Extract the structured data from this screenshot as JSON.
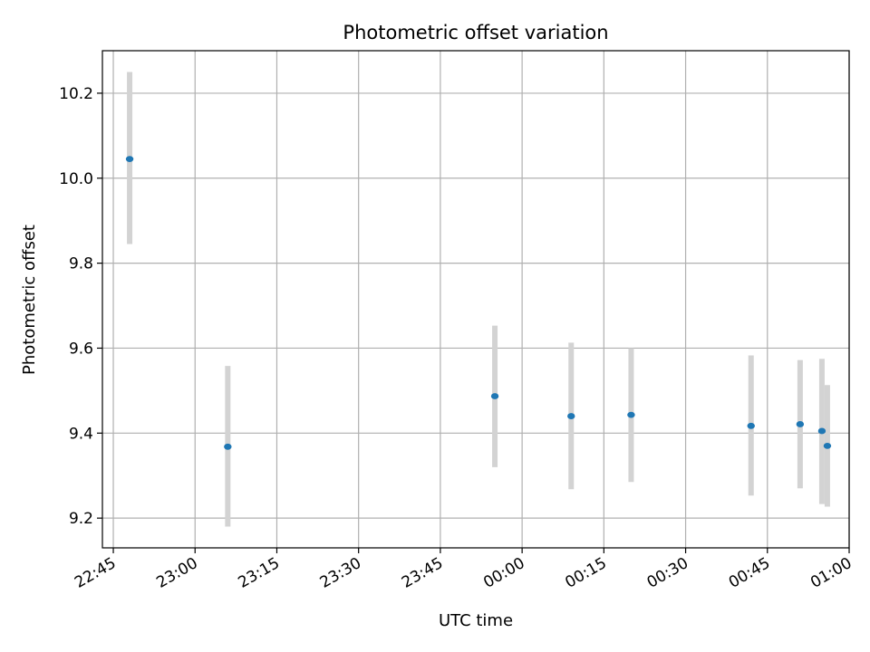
{
  "chart_data": {
    "type": "scatter",
    "title": "Photometric offset variation",
    "xlabel": "UTC time",
    "ylabel": "Photometric offset",
    "x_axis": "time (HH:MM, UTC)",
    "xlim": [
      "22:43",
      "01:00"
    ],
    "ylim": [
      9.13,
      10.3
    ],
    "x_ticks": [
      "22:45",
      "23:00",
      "23:15",
      "23:30",
      "23:45",
      "00:00",
      "00:15",
      "00:30",
      "00:45",
      "01:00"
    ],
    "y_ticks": [
      9.2,
      9.4,
      9.6,
      9.8,
      10.0,
      10.2
    ],
    "grid": true,
    "point_color": "#1f77b4",
    "errorbar_color": "#d3d3d3",
    "points": [
      {
        "time": "22:48",
        "y": 10.045,
        "ylow": 9.845,
        "yhigh": 10.25
      },
      {
        "time": "23:06",
        "y": 9.368,
        "ylow": 9.18,
        "yhigh": 9.558
      },
      {
        "time": "23:55",
        "y": 9.487,
        "ylow": 9.32,
        "yhigh": 9.653
      },
      {
        "time": "00:09",
        "y": 9.44,
        "ylow": 9.268,
        "yhigh": 9.613
      },
      {
        "time": "00:20",
        "y": 9.443,
        "ylow": 9.285,
        "yhigh": 9.6
      },
      {
        "time": "00:42",
        "y": 9.417,
        "ylow": 9.253,
        "yhigh": 9.583
      },
      {
        "time": "00:51",
        "y": 9.421,
        "ylow": 9.27,
        "yhigh": 9.572
      },
      {
        "time": "00:55",
        "y": 9.405,
        "ylow": 9.233,
        "yhigh": 9.575
      },
      {
        "time": "00:56",
        "y": 9.37,
        "ylow": 9.227,
        "yhigh": 9.513
      }
    ]
  }
}
